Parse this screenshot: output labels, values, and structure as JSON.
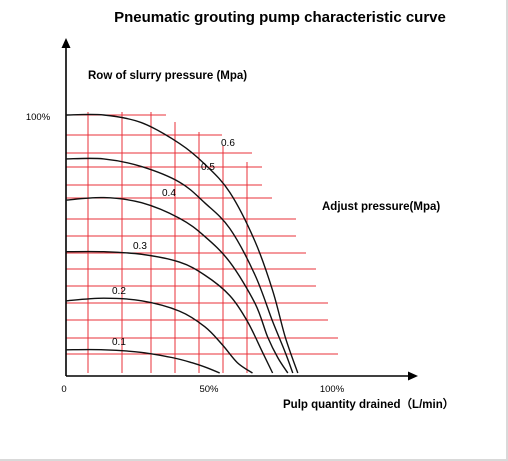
{
  "chart_data": {
    "type": "line",
    "title": "Pneumatic grouting pump characteristic curve",
    "ylabel": "Row of slurry pressure (Mpa)",
    "xlabel": "Pulp quantity drained（L/min）",
    "legend_title": "Adjust pressure(Mpa)",
    "x_ticks": [
      "0",
      "50%",
      "100%"
    ],
    "y_ticks": [
      "100%"
    ],
    "xlim": [
      0,
      100
    ],
    "ylim": [
      0,
      100
    ],
    "grid": true,
    "colors": {
      "grid": "#e8303a",
      "curve": "#111111",
      "axis": "#000000"
    },
    "series": [
      {
        "name": "0.6",
        "x": [
          0,
          15,
          30,
          45,
          55,
          65,
          75,
          82,
          87,
          92
        ],
        "y": [
          100,
          100,
          97,
          89,
          81,
          70,
          51,
          32,
          14,
          0
        ]
      },
      {
        "name": "0.5",
        "x": [
          0,
          15,
          30,
          45,
          55,
          65,
          75,
          82,
          87,
          90
        ],
        "y": [
          83,
          83,
          80,
          74,
          66,
          56,
          38,
          20,
          8,
          0
        ]
      },
      {
        "name": "0.4",
        "x": [
          0,
          15,
          30,
          45,
          55,
          65,
          75,
          80,
          84,
          88
        ],
        "y": [
          67,
          68,
          66,
          60,
          53,
          43,
          27,
          14,
          6,
          0
        ]
      },
      {
        "name": "0.3",
        "x": [
          0,
          15,
          30,
          45,
          55,
          65,
          72,
          78,
          82
        ],
        "y": [
          47,
          47,
          46,
          43,
          38,
          30,
          20,
          8,
          0
        ]
      },
      {
        "name": "0.2",
        "x": [
          0,
          15,
          30,
          45,
          55,
          62,
          68,
          74
        ],
        "y": [
          28,
          29,
          28,
          24,
          18,
          11,
          4,
          0
        ]
      },
      {
        "name": "0.1",
        "x": [
          0,
          15,
          30,
          42,
          50,
          56,
          61
        ],
        "y": [
          9,
          9,
          8,
          6,
          4,
          2,
          0
        ]
      }
    ]
  }
}
